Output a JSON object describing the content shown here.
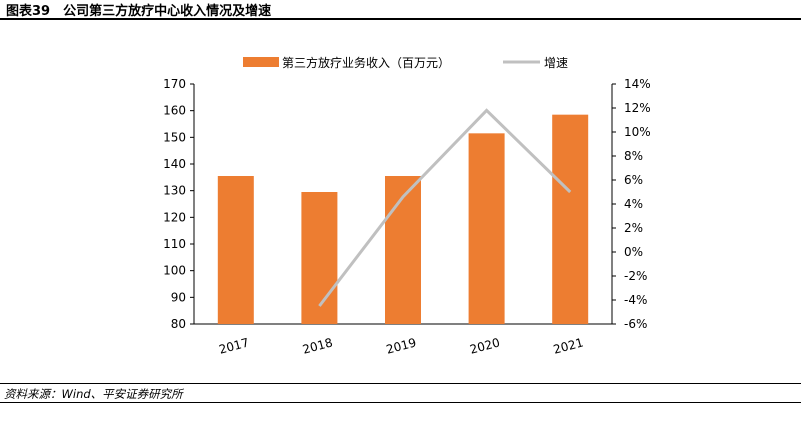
{
  "figure": {
    "title": "图表39　公司第三方放疗中心收入情况及增速",
    "source": "资料来源：Wind、平安证券研究所"
  },
  "colors": {
    "bar": "#ED7D31",
    "line": "#C0C0C0",
    "axis": "#000000"
  },
  "chart_data": {
    "type": "bar",
    "categories": [
      "2017",
      "2018",
      "2019",
      "2020",
      "2021"
    ],
    "series": [
      {
        "name": "第三方放疗业务收入（百万元）",
        "type": "bar",
        "axis": "left",
        "values": [
          135.5,
          129.5,
          135.5,
          151.5,
          158.5
        ]
      },
      {
        "name": "增速",
        "type": "line",
        "axis": "right",
        "values": [
          null,
          -4.5,
          4.6,
          11.8,
          5.0
        ]
      }
    ],
    "yleft": {
      "lim": [
        80,
        170
      ],
      "ticks": [
        "80",
        "90",
        "100",
        "110",
        "120",
        "130",
        "140",
        "150",
        "160",
        "170"
      ]
    },
    "yright": {
      "lim": [
        -6,
        14
      ],
      "ticks": [
        "-6%",
        "-4%",
        "-2%",
        "0%",
        "2%",
        "4%",
        "6%",
        "8%",
        "10%",
        "12%",
        "14%"
      ]
    },
    "legend": {
      "position": "top",
      "items": [
        "第三方放疗业务收入（百万元）",
        "增速"
      ]
    },
    "grid": false
  }
}
